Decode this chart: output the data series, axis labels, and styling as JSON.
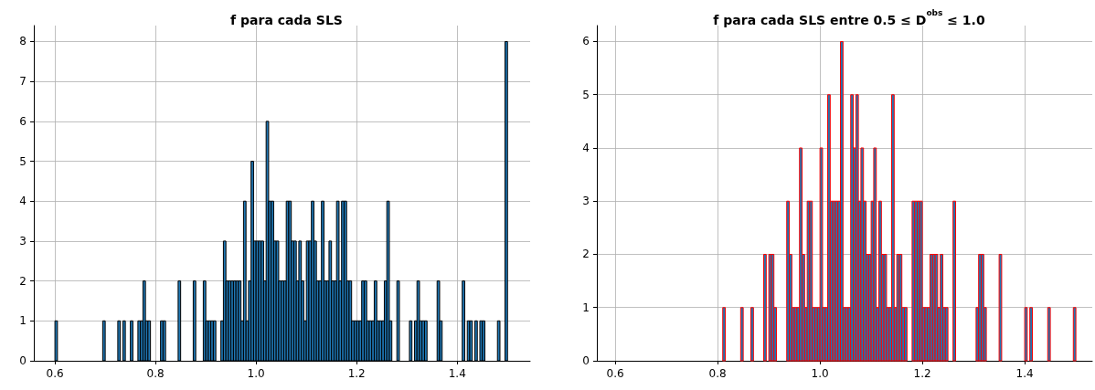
{
  "chart_data": [
    {
      "type": "histogram",
      "title": "f para cada SLS",
      "bins": [
        0.6,
        0.605,
        0.61,
        0.615,
        0.62,
        0.625,
        0.63,
        0.635,
        0.64,
        0.645,
        0.65,
        0.655,
        0.66,
        0.665,
        0.67,
        0.675,
        0.68,
        0.685,
        0.69,
        0.695,
        0.7,
        0.705,
        0.71,
        0.715,
        0.72,
        0.725,
        0.73,
        0.735,
        0.74,
        0.745,
        0.75,
        0.755,
        0.76,
        0.765,
        0.77,
        0.775,
        0.78,
        0.785,
        0.79,
        0.795,
        0.8,
        0.805,
        0.81,
        0.815,
        0.82,
        0.825,
        0.83,
        0.835,
        0.84,
        0.845,
        0.85,
        0.855,
        0.86,
        0.865,
        0.87,
        0.875,
        0.88,
        0.885,
        0.89,
        0.895,
        0.9,
        0.905,
        0.91,
        0.915,
        0.92,
        0.925,
        0.93,
        0.935,
        0.94,
        0.945,
        0.95,
        0.955,
        0.96,
        0.965,
        0.97,
        0.975,
        0.98,
        0.985,
        0.99,
        0.995,
        1.0,
        1.005,
        1.01,
        1.015,
        1.02,
        1.025,
        1.03,
        1.035,
        1.04,
        1.045,
        1.05,
        1.055,
        1.06,
        1.065,
        1.07,
        1.075,
        1.08,
        1.085,
        1.09,
        1.095,
        1.1,
        1.105,
        1.11,
        1.115,
        1.12,
        1.125,
        1.13,
        1.135,
        1.14,
        1.145,
        1.15,
        1.155,
        1.16,
        1.165,
        1.17,
        1.175,
        1.18,
        1.185,
        1.19,
        1.195,
        1.2,
        1.205,
        1.21,
        1.215,
        1.22,
        1.225,
        1.23,
        1.235,
        1.24,
        1.245,
        1.25,
        1.255,
        1.26,
        1.265,
        1.27,
        1.275,
        1.28,
        1.285,
        1.29,
        1.295,
        1.3,
        1.305,
        1.31,
        1.315,
        1.32,
        1.325,
        1.33,
        1.335,
        1.34,
        1.345,
        1.35,
        1.355,
        1.36,
        1.365,
        1.37,
        1.375,
        1.38,
        1.385,
        1.39,
        1.395,
        1.4,
        1.405,
        1.41,
        1.415,
        1.42,
        1.425,
        1.43,
        1.435,
        1.44,
        1.445,
        1.45,
        1.455,
        1.46,
        1.465,
        1.47,
        1.475,
        1.48,
        1.485,
        1.49,
        1.495,
        1.5
      ],
      "values": [
        1,
        0,
        0,
        0,
        0,
        0,
        0,
        0,
        0,
        0,
        0,
        0,
        0,
        0,
        0,
        0,
        0,
        0,
        0,
        1,
        0,
        0,
        0,
        0,
        0,
        1,
        0,
        1,
        0,
        0,
        1,
        0,
        0,
        1,
        1,
        2,
        1,
        1,
        0,
        0,
        0,
        0,
        1,
        1,
        0,
        0,
        0,
        0,
        0,
        2,
        0,
        0,
        0,
        0,
        0,
        2,
        0,
        0,
        0,
        2,
        1,
        1,
        1,
        1,
        0,
        0,
        1,
        3,
        2,
        2,
        2,
        2,
        2,
        2,
        1,
        4,
        1,
        2,
        5,
        3,
        3,
        3,
        3,
        2,
        6,
        4,
        4,
        3,
        3,
        2,
        2,
        2,
        4,
        4,
        3,
        3,
        2,
        3,
        2,
        1,
        3,
        3,
        4,
        3,
        2,
        2,
        4,
        2,
        2,
        3,
        2,
        2,
        4,
        2,
        4,
        4,
        2,
        2,
        1,
        1,
        1,
        1,
        2,
        2,
        1,
        1,
        1,
        2,
        1,
        1,
        1,
        2,
        4,
        1,
        0,
        0,
        2,
        0,
        0,
        0,
        0,
        1,
        0,
        1,
        2,
        1,
        1,
        1,
        0,
        0,
        0,
        0,
        2,
        1,
        0,
        0,
        0,
        0,
        0,
        0,
        0,
        0,
        2,
        0,
        1,
        1,
        0,
        1,
        0,
        1,
        1,
        0,
        0,
        0,
        0,
        0,
        1,
        0,
        0,
        8
      ],
      "color": "#1f77b4",
      "xlim": [
        0.558,
        1.545
      ],
      "xticks": [
        0.6,
        0.8,
        {
          "value": 1.0,
          "label": "1.0"
        },
        1.2,
        1.4
      ],
      "ylim": [
        0,
        8.4
      ],
      "yticks": [
        0,
        1,
        2,
        3,
        4,
        5,
        6,
        7,
        8
      ],
      "grid": true
    },
    {
      "type": "histogram",
      "title": "f para cada SLS entre 0.5 ≤ D$^{obs}$ ≤ 1.0",
      "bins": [
        0.6,
        0.605,
        0.61,
        0.615,
        0.62,
        0.625,
        0.63,
        0.635,
        0.64,
        0.645,
        0.65,
        0.655,
        0.66,
        0.665,
        0.67,
        0.675,
        0.68,
        0.685,
        0.69,
        0.695,
        0.7,
        0.705,
        0.71,
        0.715,
        0.72,
        0.725,
        0.73,
        0.735,
        0.74,
        0.745,
        0.75,
        0.755,
        0.76,
        0.765,
        0.77,
        0.775,
        0.78,
        0.785,
        0.79,
        0.795,
        0.8,
        0.805,
        0.81,
        0.815,
        0.82,
        0.825,
        0.83,
        0.835,
        0.84,
        0.845,
        0.85,
        0.855,
        0.86,
        0.865,
        0.87,
        0.875,
        0.88,
        0.885,
        0.89,
        0.895,
        0.9,
        0.905,
        0.91,
        0.915,
        0.92,
        0.925,
        0.93,
        0.935,
        0.94,
        0.945,
        0.95,
        0.955,
        0.96,
        0.965,
        0.97,
        0.975,
        0.98,
        0.985,
        0.99,
        0.995,
        1.0,
        1.005,
        1.01,
        1.015,
        1.02,
        1.025,
        1.03,
        1.035,
        1.04,
        1.045,
        1.05,
        1.055,
        1.06,
        1.065,
        1.07,
        1.075,
        1.08,
        1.085,
        1.09,
        1.095,
        1.1,
        1.105,
        1.11,
        1.115,
        1.12,
        1.125,
        1.13,
        1.135,
        1.14,
        1.145,
        1.15,
        1.155,
        1.16,
        1.165,
        1.17,
        1.175,
        1.18,
        1.185,
        1.19,
        1.195,
        1.2,
        1.205,
        1.21,
        1.215,
        1.22,
        1.225,
        1.23,
        1.235,
        1.24,
        1.245,
        1.25,
        1.255,
        1.26,
        1.265,
        1.27,
        1.275,
        1.28,
        1.285,
        1.29,
        1.295,
        1.3,
        1.305,
        1.31,
        1.315,
        1.32,
        1.325,
        1.33,
        1.335,
        1.34,
        1.345,
        1.35,
        1.355,
        1.36,
        1.365,
        1.37,
        1.375,
        1.38,
        1.385,
        1.39,
        1.395,
        1.4,
        1.405,
        1.41,
        1.415,
        1.42,
        1.425,
        1.43,
        1.435,
        1.44,
        1.445,
        1.45,
        1.455,
        1.46,
        1.465,
        1.47,
        1.475,
        1.48,
        1.485,
        1.49,
        1.495,
        1.5
      ],
      "values": [
        0,
        0,
        0,
        0,
        0,
        0,
        0,
        0,
        0,
        0,
        0,
        0,
        0,
        0,
        0,
        0,
        0,
        0,
        0,
        0,
        0,
        0,
        0,
        0,
        0,
        0,
        0,
        0,
        0,
        0,
        0,
        0,
        0,
        0,
        0,
        0,
        0,
        0,
        0,
        0,
        0,
        0,
        1,
        0,
        0,
        0,
        0,
        0,
        0,
        1,
        0,
        0,
        0,
        1,
        0,
        0,
        0,
        0,
        2,
        0,
        2,
        2,
        1,
        0,
        0,
        0,
        0,
        3,
        2,
        1,
        1,
        1,
        4,
        2,
        1,
        3,
        3,
        1,
        1,
        1,
        4,
        1,
        1,
        5,
        3,
        3,
        3,
        3,
        6,
        1,
        1,
        1,
        5,
        4,
        5,
        3,
        4,
        3,
        2,
        2,
        3,
        4,
        1,
        3,
        2,
        2,
        1,
        1,
        5,
        1,
        2,
        2,
        1,
        1,
        0,
        0,
        3,
        3,
        3,
        3,
        1,
        1,
        1,
        2,
        2,
        2,
        1,
        2,
        1,
        1,
        0,
        0,
        3,
        0,
        0,
        0,
        0,
        0,
        0,
        0,
        0,
        1,
        2,
        2,
        1,
        0,
        0,
        0,
        0,
        0,
        2,
        0,
        0,
        0,
        0,
        0,
        0,
        0,
        0,
        0,
        1,
        0,
        1,
        0,
        0,
        0,
        0,
        0,
        0,
        1,
        0,
        0,
        0,
        0,
        0,
        0,
        0,
        0,
        0,
        1
      ],
      "color": "#1f77b4",
      "xlim": [
        0.564,
        1.532
      ],
      "xticks": [
        0.6,
        0.8,
        {
          "value": 1.0,
          "label": "1.0"
        },
        1.2,
        1.4
      ],
      "ylim": [
        0,
        6.3
      ],
      "yticks": [
        0,
        1,
        2,
        3,
        4,
        5,
        6
      ],
      "grid": true
    }
  ]
}
